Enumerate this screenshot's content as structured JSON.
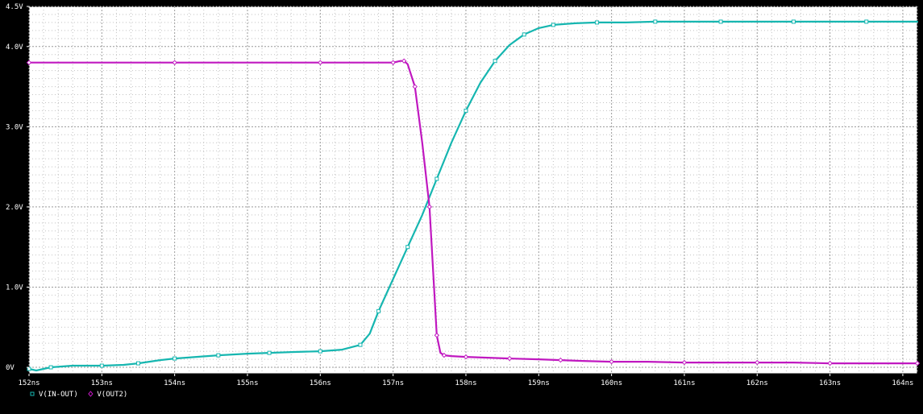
{
  "chart_data": {
    "type": "line",
    "xlabel": "",
    "ylabel": "",
    "xlim": [
      152,
      164.2
    ],
    "ylim": [
      -0.08,
      4.5
    ],
    "grid": true,
    "legend_position": "bottom-left",
    "x_ticks": [
      {
        "value": 152,
        "label": "152ns"
      },
      {
        "value": 153,
        "label": "153ns"
      },
      {
        "value": 154,
        "label": "154ns"
      },
      {
        "value": 155,
        "label": "155ns"
      },
      {
        "value": 156,
        "label": "156ns"
      },
      {
        "value": 157,
        "label": "157ns"
      },
      {
        "value": 158,
        "label": "158ns"
      },
      {
        "value": 159,
        "label": "159ns"
      },
      {
        "value": 160,
        "label": "160ns"
      },
      {
        "value": 161,
        "label": "161ns"
      },
      {
        "value": 162,
        "label": "162ns"
      },
      {
        "value": 163,
        "label": "163ns"
      },
      {
        "value": 164,
        "label": "164ns"
      }
    ],
    "y_ticks": [
      {
        "value": 0,
        "label": "0V"
      },
      {
        "value": 1,
        "label": "1.0V"
      },
      {
        "value": 2,
        "label": "2.0V"
      },
      {
        "value": 3,
        "label": "3.0V"
      },
      {
        "value": 4,
        "label": "4.0V"
      },
      {
        "value": 4.5,
        "label": "4.5V"
      }
    ],
    "series": [
      {
        "name": "V(IN-OUT)",
        "color": "#16b6b0",
        "marker": "square",
        "x": [
          152.0,
          152.1,
          152.3,
          152.6,
          153.0,
          153.3,
          153.5,
          153.8,
          154.0,
          154.3,
          154.6,
          155.0,
          155.3,
          155.6,
          156.0,
          156.3,
          156.55,
          156.68,
          156.8,
          157.0,
          157.2,
          157.4,
          157.6,
          157.8,
          158.0,
          158.2,
          158.4,
          158.6,
          158.8,
          159.0,
          159.2,
          159.5,
          159.8,
          160.2,
          160.6,
          161.0,
          161.5,
          162.0,
          162.5,
          163.0,
          163.5,
          164.2
        ],
        "y": [
          -0.02,
          -0.04,
          0.0,
          0.02,
          0.02,
          0.03,
          0.05,
          0.09,
          0.11,
          0.13,
          0.15,
          0.17,
          0.18,
          0.19,
          0.2,
          0.22,
          0.28,
          0.42,
          0.7,
          1.1,
          1.5,
          1.9,
          2.35,
          2.8,
          3.2,
          3.55,
          3.82,
          4.02,
          4.15,
          4.23,
          4.27,
          4.29,
          4.3,
          4.3,
          4.31,
          4.31,
          4.31,
          4.31,
          4.31,
          4.31,
          4.31,
          4.31
        ]
      },
      {
        "name": "V(OUT2)",
        "color": "#c018c0",
        "marker": "diamond",
        "x": [
          152.0,
          153.0,
          154.0,
          155.0,
          156.0,
          156.8,
          157.0,
          157.1,
          157.15,
          157.2,
          157.3,
          157.4,
          157.5,
          157.55,
          157.6,
          157.65,
          157.7,
          157.8,
          158.0,
          158.3,
          158.6,
          159.0,
          159.3,
          159.6,
          160.0,
          160.5,
          161.0,
          161.5,
          162.0,
          162.5,
          163.0,
          163.5,
          164.2
        ],
        "y": [
          3.8,
          3.8,
          3.8,
          3.8,
          3.8,
          3.8,
          3.8,
          3.82,
          3.82,
          3.78,
          3.5,
          2.8,
          2.0,
          1.2,
          0.4,
          0.18,
          0.15,
          0.14,
          0.13,
          0.12,
          0.11,
          0.1,
          0.09,
          0.08,
          0.07,
          0.07,
          0.06,
          0.06,
          0.06,
          0.06,
          0.05,
          0.05,
          0.05
        ]
      }
    ]
  }
}
